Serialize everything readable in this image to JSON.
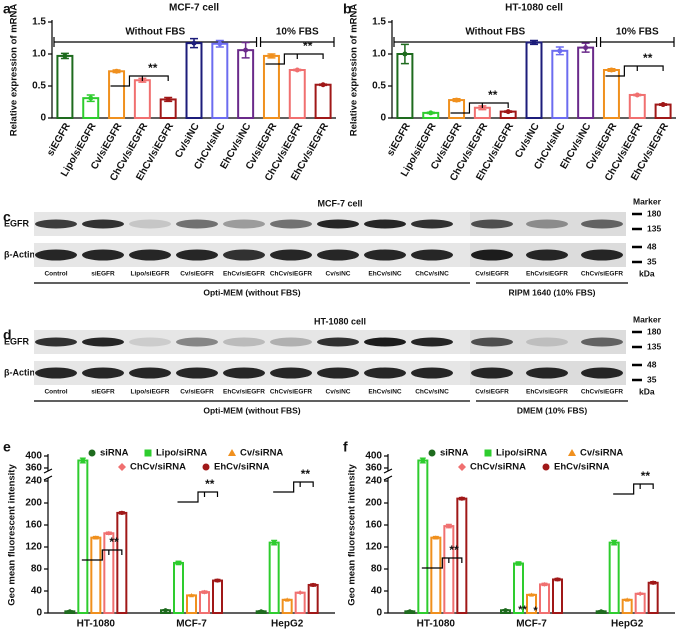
{
  "chart_data": [
    {
      "type": "bar",
      "label": "a",
      "title": "MCF-7 cell",
      "ylabel": "Relative expression of mRNA",
      "categories": [
        "siEGFR",
        "Lipo/siEGFR",
        "Cv/siEGFR",
        "ChCv/siEGFR",
        "EhCv/siEGFR",
        "Cv/siNC",
        "ChCv/siNC",
        "EhCv/siNC",
        "Cv/siEGFR",
        "ChCv/siEGFR",
        "EhCv/siEGFR"
      ],
      "values": [
        0.97,
        0.31,
        0.73,
        0.59,
        0.29,
        1.17,
        1.16,
        1.06,
        0.97,
        0.75,
        0.52
      ],
      "errors": [
        0.04,
        0.05,
        0.02,
        0.03,
        0.03,
        0.07,
        0.05,
        0.12,
        0.03,
        0.01,
        0.01
      ],
      "colors": [
        "#1e6b1e",
        "#2ecc2e",
        "#f0901e",
        "#f07070",
        "#a01818",
        "#1c1c7a",
        "#6c6cf0",
        "#6a2a8a",
        "#f0901e",
        "#f07070",
        "#a01818"
      ],
      "ylim": [
        0,
        1.5
      ],
      "yticks": [
        0,
        0.5,
        {
          "value": 1,
          "label": "1.0"
        },
        1.5
      ],
      "groups": [
        "Without FBS",
        "10% FBS"
      ],
      "annotations": [
        "**",
        "**"
      ]
    },
    {
      "type": "bar",
      "label": "b",
      "title": "HT-1080 cell",
      "ylabel": "Relative expression of mRNA",
      "categories": [
        "siEGFR",
        "Lipo/siEGFR",
        "Cv/siEGFR",
        "ChCv/siEGFR",
        "EhCv/siEGFR",
        "Cv/siNC",
        "ChCv/siNC",
        "EhCv/siNC",
        "Cv/siEGFR",
        "ChCv/siEGFR",
        "EhCv/siEGFR"
      ],
      "values": [
        1.0,
        0.08,
        0.28,
        0.16,
        0.1,
        1.18,
        1.05,
        1.1,
        0.75,
        0.36,
        0.21
      ],
      "errors": [
        0.15,
        0.01,
        0.02,
        0.03,
        0.01,
        0.03,
        0.06,
        0.07,
        0.02,
        0.01,
        0.01
      ],
      "colors": [
        "#1e6b1e",
        "#2ecc2e",
        "#f0901e",
        "#f07070",
        "#a01818",
        "#1c1c7a",
        "#6c6cf0",
        "#6a2a8a",
        "#f0901e",
        "#f07070",
        "#a01818"
      ],
      "ylim": [
        0,
        1.5
      ],
      "yticks": [
        0,
        0.5,
        {
          "value": 1,
          "label": "1.0"
        },
        1.5
      ],
      "groups": [
        "Without FBS",
        "10% FBS"
      ],
      "annotations": [
        "**",
        "**"
      ]
    },
    {
      "type": "grouped_bar",
      "label": "e",
      "ylabel": "Geo mean fluorescent intensity",
      "categories": [
        "HT-1080",
        "MCF-7",
        "HepG2"
      ],
      "series": [
        {
          "name": "siRNA",
          "color": "#1e6b1e",
          "marker": "circle",
          "values": [
            3,
            5,
            3
          ],
          "errors": [
            1,
            1,
            1
          ]
        },
        {
          "name": "Lipo/siRNA",
          "color": "#2ecc2e",
          "marker": "square",
          "values": [
            385,
            91,
            128
          ],
          "errors": [
            8,
            3,
            4
          ]
        },
        {
          "name": "Cv/siRNA",
          "color": "#f0901e",
          "marker": "triangle",
          "values": [
            137,
            32,
            24
          ],
          "errors": [
            2,
            1,
            1
          ]
        },
        {
          "name": "ChCv/siRNA",
          "color": "#f07070",
          "marker": "diamond",
          "values": [
            145,
            38,
            37
          ],
          "errors": [
            2,
            2,
            1
          ]
        },
        {
          "name": "EhCv/siRNA",
          "color": "#a01818",
          "marker": "circle",
          "values": [
            182,
            59,
            51
          ],
          "errors": [
            2,
            2,
            2
          ]
        }
      ],
      "ylim": [
        0,
        400
      ],
      "ybreak": [
        240,
        360
      ],
      "yticks": [
        0,
        40,
        80,
        120,
        160,
        200,
        240,
        360,
        400
      ],
      "annotations": [
        "**",
        "**",
        "**"
      ]
    },
    {
      "type": "grouped_bar",
      "label": "f",
      "ylabel": "Geo mean fluorescent intensity",
      "categories": [
        "HT-1080",
        "MCF-7",
        "HepG2"
      ],
      "series": [
        {
          "name": "siRNA",
          "color": "#1e6b1e",
          "marker": "circle",
          "values": [
            3,
            5,
            3
          ],
          "errors": [
            1,
            1,
            1
          ]
        },
        {
          "name": "Lipo/siRNA",
          "color": "#2ecc2e",
          "marker": "square",
          "values": [
            385,
            90,
            128
          ],
          "errors": [
            8,
            3,
            4
          ]
        },
        {
          "name": "Cv/siRNA",
          "color": "#f0901e",
          "marker": "triangle",
          "values": [
            137,
            33,
            24
          ],
          "errors": [
            2,
            1,
            1
          ]
        },
        {
          "name": "ChCv/siRNA",
          "color": "#f07070",
          "marker": "diamond",
          "values": [
            158,
            52,
            35
          ],
          "errors": [
            3,
            2,
            1
          ]
        },
        {
          "name": "EhCv/siRNA",
          "color": "#a01818",
          "marker": "circle",
          "values": [
            208,
            61,
            55
          ],
          "errors": [
            2,
            2,
            2
          ]
        }
      ],
      "ylim": [
        0,
        400
      ],
      "ybreak": [
        240,
        360
      ],
      "yticks": [
        0,
        40,
        80,
        120,
        160,
        200,
        240,
        360,
        400
      ],
      "annotations": [
        "**",
        "**",
        "*",
        "**"
      ]
    }
  ],
  "blots": [
    {
      "label": "c",
      "title": "MCF-7 cell",
      "rows": [
        "EGFR",
        "β-Actin"
      ],
      "lanes": [
        "Control",
        "siEGFR",
        "Lipo/siEGFR",
        "Cv/siEGFR",
        "EhCv/siEGFR",
        "ChCv/siEGFR",
        "Cv/siNC",
        "EhCv/siNC",
        "ChCv/siNC",
        "Cv/siEGFR",
        "EhCv/siEGFR",
        "ChCv/siEGFR"
      ],
      "groups": [
        "Opti-MEM (without FBS)",
        "RIPM 1640 (10% FBS)"
      ],
      "marker_title": "Marker",
      "markers": [
        180,
        135,
        48,
        35
      ],
      "unit": "kDa"
    },
    {
      "label": "d",
      "title": "HT-1080 cell",
      "rows": [
        "EGFR",
        "β-Actin"
      ],
      "lanes": [
        "Control",
        "siEGFR",
        "Lipo/siEGFR",
        "Cv/siEGFR",
        "EhCv/siEGFR",
        "ChCv/siEGFR",
        "Cv/siNC",
        "EhCv/siNC",
        "ChCv/siNC",
        "Cv/siEGFR",
        "EhCv/siEGFR",
        "ChCv/siEGFR"
      ],
      "groups": [
        "Opti-MEM (without FBS)",
        "DMEM (10% FBS)"
      ],
      "marker_title": "Marker",
      "markers": [
        180,
        135,
        48,
        35
      ],
      "unit": "kDa"
    }
  ]
}
